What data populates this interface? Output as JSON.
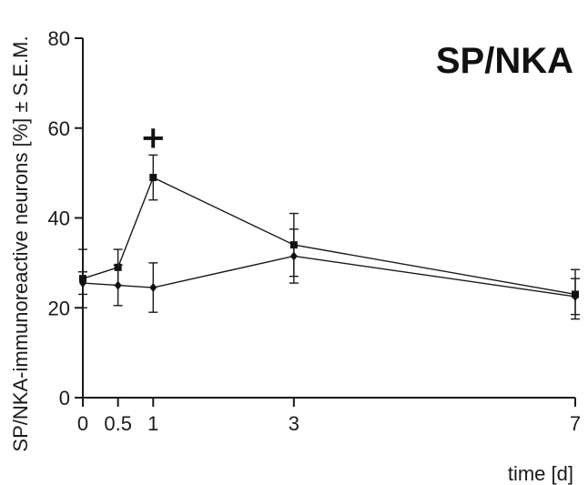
{
  "chart_data": {
    "type": "line",
    "title": "SP/NKA",
    "xlabel": "time [d]",
    "ylabel": "SP/NKA-immunoreactive neurons [%] ± S.E.M.",
    "x_ticks": [
      0,
      0.5,
      1,
      3,
      7
    ],
    "x_tick_labels": [
      "0",
      "0.5",
      "1",
      "3",
      "7"
    ],
    "y_ticks": [
      0,
      20,
      40,
      60,
      80
    ],
    "y_tick_labels": [
      "0",
      "20",
      "40",
      "60",
      "80"
    ],
    "xlim": [
      0,
      7
    ],
    "ylim": [
      0,
      80
    ],
    "grid": false,
    "annotations": [
      {
        "text": "+",
        "x": 1,
        "y": 58
      }
    ],
    "series": [
      {
        "marker": "square",
        "x": [
          0,
          0.5,
          1,
          3,
          7
        ],
        "y": [
          26.5,
          29,
          49,
          34,
          23
        ],
        "err": [
          6.5,
          4,
          5,
          7,
          5.5
        ]
      },
      {
        "marker": "diamond",
        "x": [
          0,
          0.5,
          1,
          3,
          7
        ],
        "y": [
          25.5,
          25,
          24.5,
          31.5,
          22.5
        ],
        "err": [
          2.5,
          4.5,
          5.5,
          6,
          4
        ]
      }
    ]
  }
}
